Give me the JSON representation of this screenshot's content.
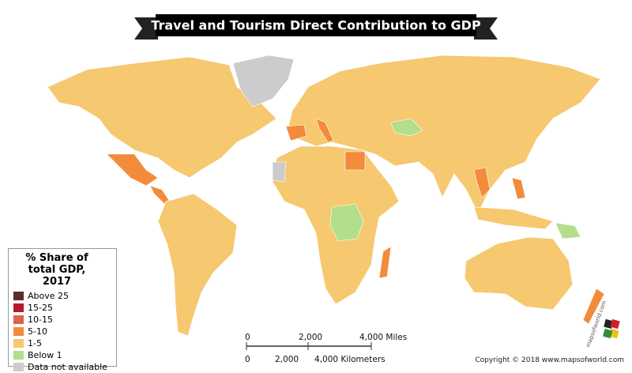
{
  "title": "Travel and Tourism Direct Contribution to GDP",
  "legend": {
    "title": "% Share of total GDP, 2017",
    "items": [
      {
        "label": "Above 25",
        "color": "#5e2b2b"
      },
      {
        "label": "15-25",
        "color": "#b8192d"
      },
      {
        "label": "10-15",
        "color": "#d9654c"
      },
      {
        "label": "5-10",
        "color": "#f38b3b"
      },
      {
        "label": "1-5",
        "color": "#f6c86f"
      },
      {
        "label": "Below 1",
        "color": "#b3de8c"
      },
      {
        "label": "Data not available",
        "color": "#cdcbcb"
      }
    ]
  },
  "scale": {
    "miles": [
      "0",
      "2,000",
      "4,000 Miles"
    ],
    "kilometers": [
      "0",
      "2,000",
      "4,000 Kilometers"
    ]
  },
  "copyright": "Copyright © 2018 www.mapsofworld.com",
  "logo": "mapsofworld.com"
}
